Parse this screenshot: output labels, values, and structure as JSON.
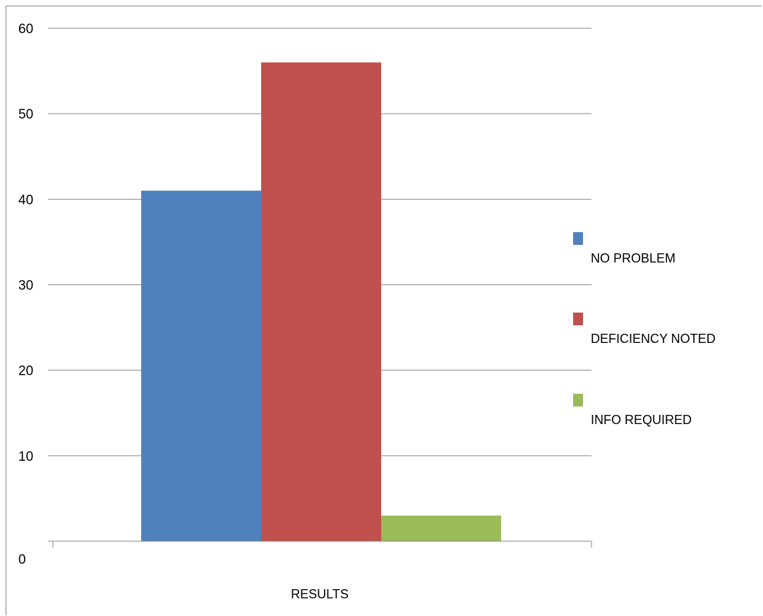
{
  "chart_data": {
    "type": "bar",
    "categories": [
      "RESULTS"
    ],
    "series": [
      {
        "name": "NO PROBLEM",
        "values": [
          41
        ],
        "color": "#4F81BD"
      },
      {
        "name": "DEFICIENCY NOTED",
        "values": [
          56
        ],
        "color": "#C0504D"
      },
      {
        "name": "INFO REQUIRED",
        "values": [
          3
        ],
        "color": "#9BBB59"
      }
    ],
    "ylim": [
      0,
      60
    ],
    "yticks": [
      "0",
      "10",
      "20",
      "30",
      "40",
      "50",
      "60"
    ],
    "grid": true,
    "legend": "right"
  }
}
